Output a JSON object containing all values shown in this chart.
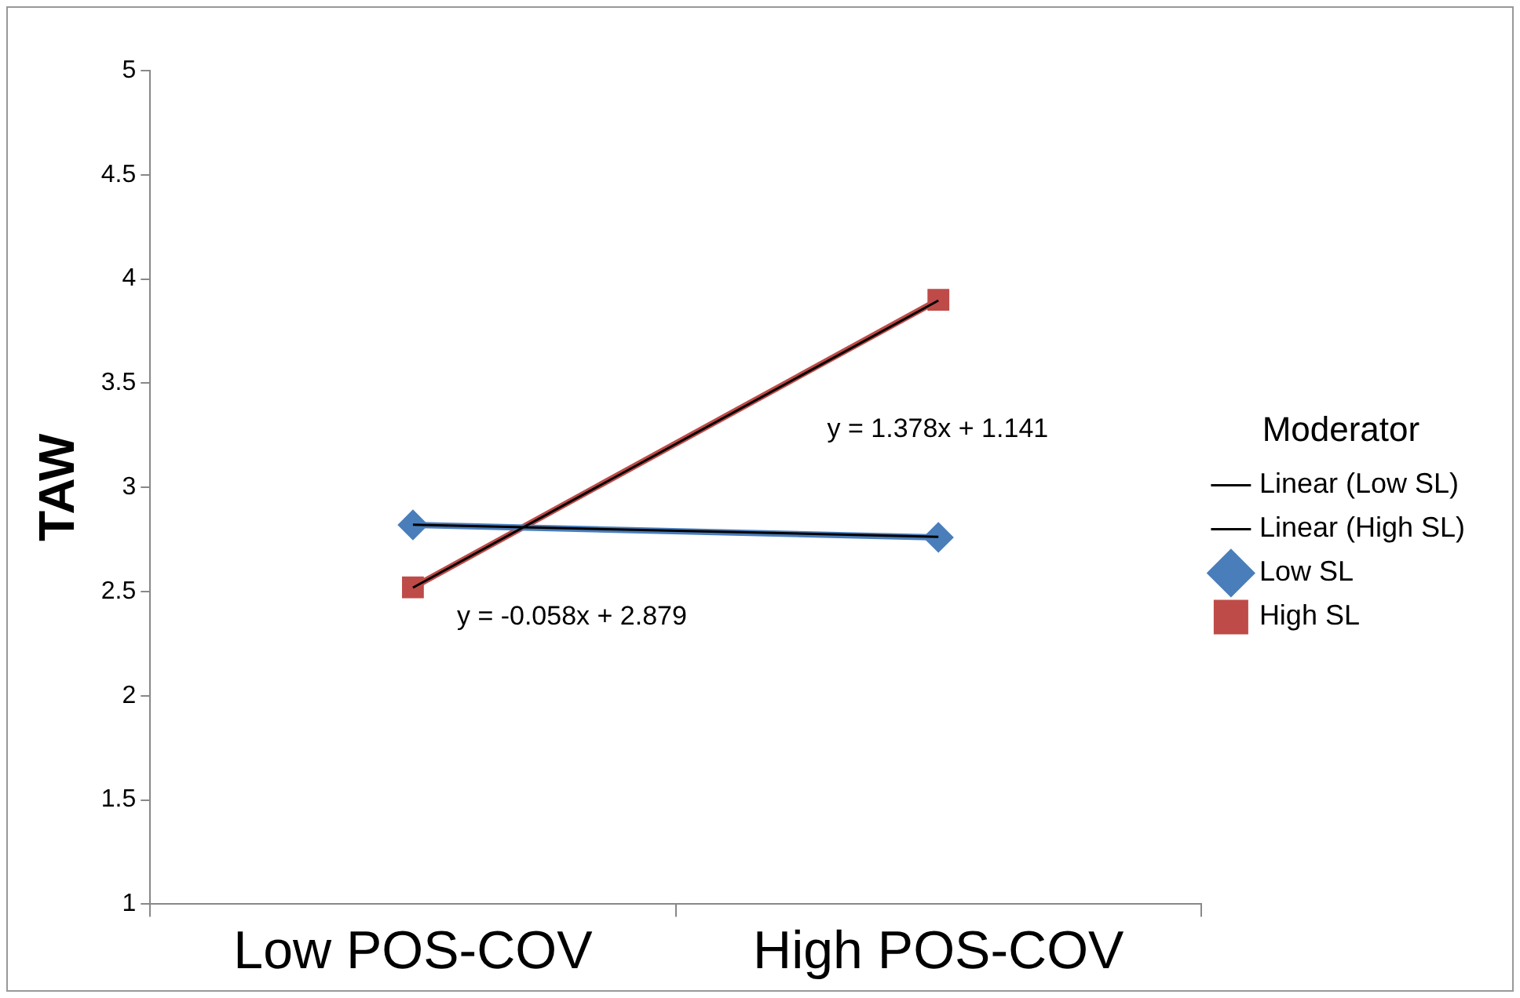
{
  "chart_data": {
    "type": "line",
    "ylabel": "TAW",
    "categories": [
      "Low POS-COV",
      "High POS-COV"
    ],
    "series": [
      {
        "name": "Low SL",
        "color": "#4a7ebb",
        "values": [
          2.82,
          2.76
        ],
        "marker": "diamond"
      },
      {
        "name": "High SL",
        "color": "#be4b48",
        "values": [
          2.52,
          3.9
        ],
        "marker": "square"
      },
      {
        "name": "Linear (Low SL)",
        "color": "#000000",
        "type": "line",
        "x": [
          "Low POS-COV",
          "High POS-COV"
        ],
        "values": [
          2.821,
          2.763
        ],
        "marker": "none"
      },
      {
        "name": "Linear (High SL)",
        "color": "#000000",
        "type": "line",
        "x": [
          "Low POS-COV",
          "High POS-COV"
        ],
        "values": [
          2.519,
          3.897
        ],
        "marker": "none"
      }
    ],
    "ylim": [
      1,
      5
    ],
    "yticks": [
      1,
      1.5,
      2,
      2.5,
      3,
      3.5,
      4,
      4.5,
      5
    ],
    "grid": false,
    "legend": "right",
    "legend_title": "Moderator",
    "annotations": [
      "y = 1.378x + 1.141",
      "y = -0.058x + 2.879"
    ]
  }
}
